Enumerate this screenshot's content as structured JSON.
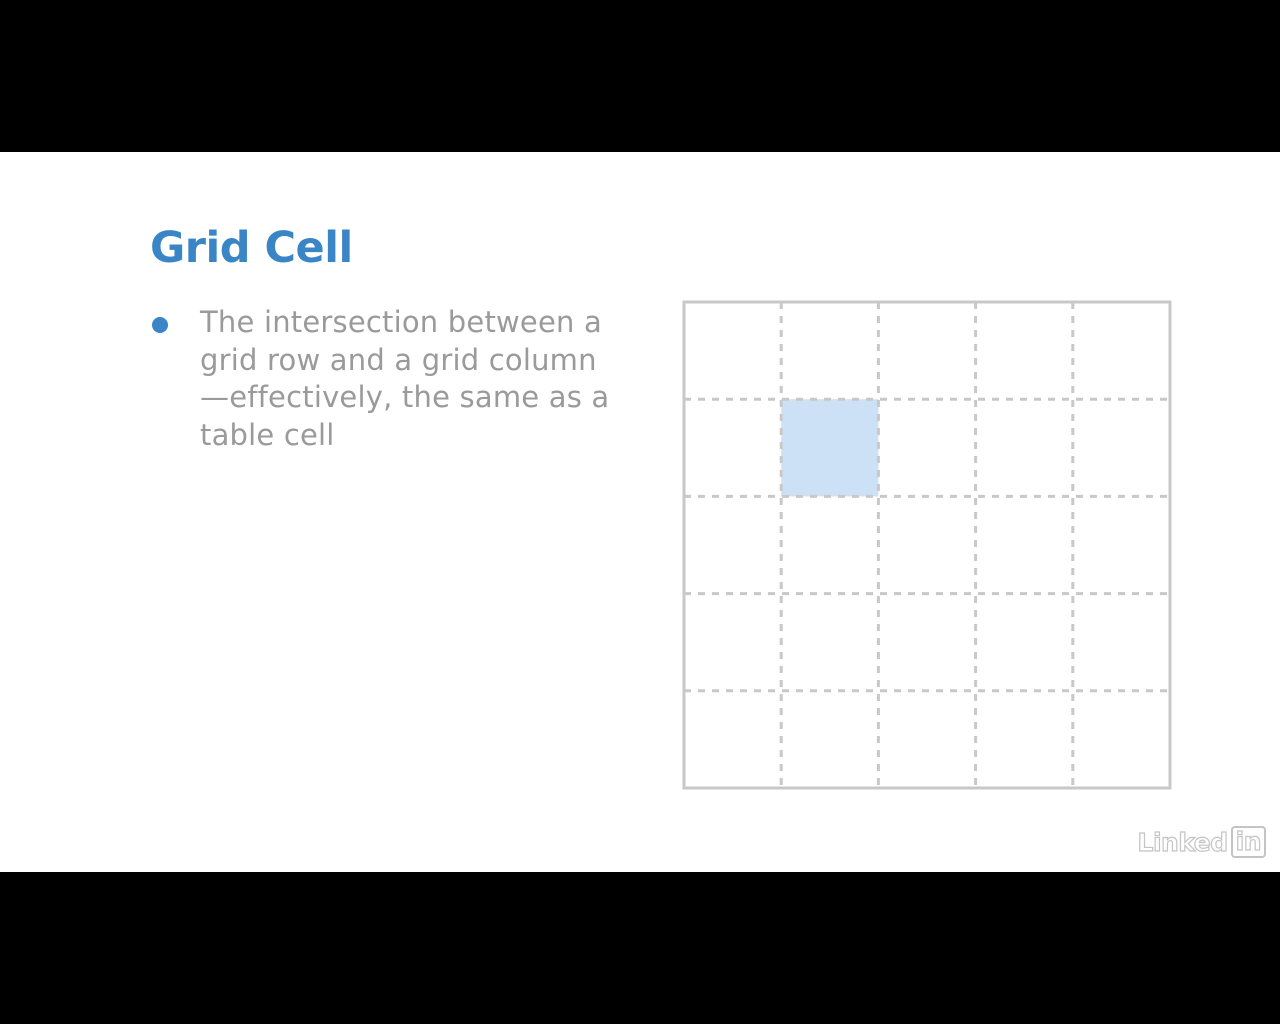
{
  "slide": {
    "title": "Grid Cell",
    "bullets": [
      {
        "text": "The intersection between a grid row and a grid column—effectively, the same as a table cell"
      }
    ]
  },
  "diagram": {
    "rows": 5,
    "columns": 5,
    "highlighted_cell": {
      "row": 2,
      "column": 2
    },
    "colors": {
      "accent": "#3a85c6",
      "grid_line": "#c8c8c8",
      "highlight_fill": "#cce1f5",
      "body_text": "#9a9a9a"
    }
  },
  "branding": {
    "logo_text": "Linked",
    "logo_box_text": "in"
  }
}
